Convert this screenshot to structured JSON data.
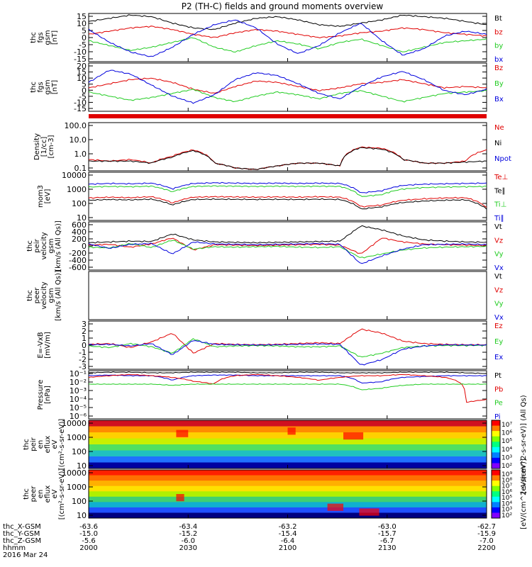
{
  "title": "P2 (TH-C) fields and ground moments overview",
  "colors": {
    "black": "#000000",
    "red": "#e00000",
    "green": "#22cc22",
    "blue": "#0000dd"
  },
  "chart_data": [
    {
      "type": "line",
      "id": "fgs_gsm",
      "ylabel": [
        "thc",
        "fgs",
        "gsm",
        "[nT]"
      ],
      "ylim": [
        -15,
        15
      ],
      "yticks": [
        "15",
        "10",
        "5",
        "0",
        "-5",
        "-10",
        "-15"
      ],
      "legend": [
        "Bt",
        "bz",
        "by",
        "bx"
      ],
      "legend_colors": [
        "black",
        "red",
        "green",
        "blue"
      ],
      "series": [
        {
          "name": "Bt",
          "color": "black",
          "values": [
            10,
            12,
            14,
            13,
            9,
            6,
            5,
            9,
            12,
            13,
            11,
            8,
            7,
            9,
            11,
            14,
            13,
            12,
            10,
            8
          ]
        },
        {
          "name": "bz",
          "color": "red",
          "values": [
            2,
            4,
            6,
            7,
            5,
            2,
            0,
            3,
            5,
            4,
            2,
            0,
            1,
            3,
            4,
            6,
            5,
            3,
            2,
            1
          ]
        },
        {
          "name": "by",
          "color": "green",
          "values": [
            -2,
            -5,
            -8,
            -6,
            -3,
            0,
            -6,
            -9,
            -5,
            -2,
            -4,
            -7,
            -3,
            -1,
            -5,
            -9,
            -6,
            -3,
            -2,
            -1
          ]
        },
        {
          "name": "bx",
          "color": "blue",
          "values": [
            5,
            -3,
            -9,
            -12,
            -6,
            2,
            8,
            11,
            6,
            -4,
            -10,
            -5,
            3,
            9,
            -2,
            -11,
            -7,
            1,
            4,
            2
          ]
        }
      ]
    },
    {
      "type": "line",
      "id": "fgs_gsm2",
      "ylabel": [
        "thc",
        "fgs",
        "gsm",
        "[nT]"
      ],
      "ylim": [
        -15,
        20
      ],
      "yticks": [
        "20",
        "15",
        "10",
        "5",
        "0",
        "-5",
        "-10",
        "-15"
      ],
      "legend": [
        "Bz",
        "By",
        "Bx"
      ],
      "legend_colors": [
        "red",
        "green",
        "blue"
      ],
      "series": [
        {
          "name": "Bz",
          "color": "red",
          "values": [
            2,
            5,
            8,
            9,
            6,
            1,
            -2,
            3,
            7,
            6,
            3,
            0,
            2,
            5,
            6,
            8,
            5,
            2,
            3,
            2
          ]
        },
        {
          "name": "By",
          "color": "green",
          "values": [
            -1,
            -4,
            -7,
            -5,
            -2,
            1,
            -5,
            -8,
            -4,
            -1,
            -3,
            -6,
            -2,
            0,
            -4,
            -8,
            -5,
            -2,
            -1,
            0
          ]
        },
        {
          "name": "Bx",
          "color": "blue",
          "values": [
            6,
            15,
            12,
            4,
            -4,
            -9,
            -3,
            8,
            13,
            11,
            5,
            -2,
            -6,
            3,
            10,
            14,
            8,
            0,
            -3,
            1
          ]
        }
      ]
    },
    {
      "type": "line",
      "id": "density",
      "ylabel": [
        "Density",
        "[1/cc]",
        "[cm-3]"
      ],
      "log": true,
      "ylim": [
        0.1,
        100
      ],
      "yticks": [
        "100.0",
        "10.0",
        "1.0",
        "0.1"
      ],
      "legend": [
        "Ne",
        "Ni",
        "Npot"
      ],
      "legend_colors": [
        "red",
        "black",
        "blue"
      ],
      "series": [
        {
          "name": "Ne",
          "color": "red",
          "values": [
            0.5,
            0.4,
            0.5,
            0.3,
            0.8,
            2.0,
            0.3,
            0.15,
            0.12,
            0.2,
            0.3,
            0.3,
            0.2,
            3.0,
            2.5,
            0.5,
            0.3,
            0.3,
            0.4,
            2.0
          ]
        },
        {
          "name": "Ni",
          "color": "black",
          "values": [
            0.4,
            0.4,
            0.4,
            0.3,
            0.7,
            1.8,
            0.3,
            0.15,
            0.12,
            0.2,
            0.3,
            0.3,
            0.2,
            2.8,
            2.2,
            0.5,
            0.3,
            0.3,
            0.35,
            0.4
          ]
        }
      ]
    },
    {
      "type": "line",
      "id": "temperature",
      "ylabel": [
        "mom3",
        "[eV]"
      ],
      "log": true,
      "ylim": [
        10,
        10000
      ],
      "yticks": [
        "10000",
        "1000",
        "100",
        "10"
      ],
      "legend": [
        "Te⊥",
        "Te∥",
        "Ti⊥",
        "Ti∥"
      ],
      "legend_colors": [
        "red",
        "black",
        "green",
        "blue"
      ],
      "series": [
        {
          "name": "Ti∥",
          "color": "blue",
          "values": [
            1800,
            2000,
            1900,
            2100,
            900,
            2000,
            2200,
            2100,
            2000,
            2100,
            2000,
            2100,
            2000,
            500,
            700,
            1500,
            1800,
            1900,
            2000,
            2100
          ]
        },
        {
          "name": "Ti⊥",
          "color": "green",
          "values": [
            1200,
            1300,
            1250,
            1350,
            600,
            1300,
            1400,
            1350,
            1300,
            1350,
            1300,
            1350,
            1300,
            300,
            400,
            900,
            1100,
            1200,
            1250,
            1300
          ]
        },
        {
          "name": "Te⊥",
          "color": "red",
          "values": [
            250,
            280,
            260,
            300,
            120,
            280,
            300,
            290,
            280,
            290,
            280,
            300,
            280,
            70,
            90,
            180,
            220,
            250,
            260,
            60
          ]
        },
        {
          "name": "Te∥",
          "color": "black",
          "values": [
            180,
            200,
            190,
            210,
            90,
            200,
            210,
            205,
            200,
            205,
            200,
            210,
            200,
            50,
            70,
            130,
            160,
            180,
            190,
            50
          ]
        }
      ]
    },
    {
      "type": "line",
      "id": "velocity",
      "ylabel": [
        "thc",
        "peir",
        "velocity",
        "gsm",
        "[km/s (All Qs)]"
      ],
      "ylim": [
        -600,
        600
      ],
      "yticks": [
        "600",
        "400",
        "200",
        "0",
        "-200",
        "-400",
        "-600"
      ],
      "legend": [
        "Vt",
        "Vz",
        "Vy",
        "Vx"
      ],
      "legend_colors": [
        "black",
        "red",
        "green",
        "blue"
      ],
      "series": [
        {
          "name": "Vt",
          "color": "black",
          "values": [
            80,
            100,
            120,
            110,
            300,
            150,
            100,
            90,
            80,
            90,
            100,
            110,
            120,
            500,
            400,
            250,
            150,
            120,
            100,
            90
          ]
        },
        {
          "name": "Vz",
          "color": "red",
          "values": [
            20,
            40,
            -30,
            50,
            200,
            -100,
            30,
            20,
            10,
            20,
            30,
            40,
            20,
            -200,
            200,
            100,
            50,
            30,
            20,
            10
          ]
        },
        {
          "name": "Vy",
          "color": "green",
          "values": [
            -30,
            -50,
            60,
            -40,
            150,
            -80,
            -20,
            -30,
            -20,
            -10,
            -30,
            -40,
            -20,
            -300,
            -200,
            -100,
            -50,
            -30,
            -20,
            -10
          ]
        },
        {
          "name": "Vx",
          "color": "blue",
          "values": [
            50,
            -60,
            40,
            60,
            -200,
            100,
            50,
            40,
            30,
            40,
            50,
            60,
            40,
            -450,
            -250,
            -80,
            30,
            40,
            50,
            30
          ]
        }
      ]
    },
    {
      "type": "line",
      "id": "velocity_e",
      "ylabel": [
        "thc",
        "peer",
        "velocity",
        "gsm",
        "[km/s (All Qs)]"
      ],
      "ylim": [
        -1,
        1
      ],
      "yticks": [],
      "legend": [
        "Vt",
        "Vz",
        "Vy",
        "Vx"
      ],
      "legend_colors": [
        "black",
        "red",
        "green",
        "blue"
      ],
      "series": []
    },
    {
      "type": "line",
      "id": "efield",
      "ylabel": [
        "E=-VxB",
        "[mV/m]"
      ],
      "ylim": [
        -3,
        3
      ],
      "yticks": [
        "3",
        "2",
        "1",
        "0",
        "-1",
        "-2",
        "-3"
      ],
      "legend": [
        "Ez",
        "Ey",
        "Ex"
      ],
      "legend_colors": [
        "red",
        "green",
        "blue"
      ],
      "series": [
        {
          "name": "Ez",
          "color": "red",
          "values": [
            0.1,
            0.2,
            -0.3,
            0.4,
            1.5,
            -1.0,
            0.2,
            0.1,
            0.05,
            0.1,
            0.2,
            0.3,
            0.2,
            2.0,
            1.5,
            0.5,
            0.2,
            0.1,
            0.05,
            0.05
          ]
        },
        {
          "name": "Ey",
          "color": "green",
          "values": [
            -0.1,
            -0.3,
            0.2,
            -0.2,
            -1.0,
            0.8,
            -0.2,
            -0.1,
            -0.05,
            -0.1,
            -0.2,
            -0.2,
            -0.1,
            -1.5,
            -1.0,
            -0.3,
            -0.1,
            -0.05,
            -0.05,
            -0.02
          ]
        },
        {
          "name": "Ex",
          "color": "blue",
          "values": [
            0.05,
            0.1,
            -0.1,
            0.2,
            -1.2,
            0.6,
            0.1,
            0.05,
            0.02,
            0.05,
            0.1,
            0.15,
            0.1,
            -2.5,
            -1.8,
            -0.5,
            -0.1,
            0.05,
            0.02,
            0.01
          ]
        }
      ]
    },
    {
      "type": "line",
      "id": "pressure",
      "ylabel": [
        "Pressure",
        "[nPa]"
      ],
      "log": true,
      "ylim": [
        1e-06,
        0.1
      ],
      "yticks": [
        "10⁻¹",
        "10⁻²",
        "10⁻³",
        "10⁻⁴",
        "10⁻⁵",
        "10⁻⁶"
      ],
      "legend": [
        "Pt",
        "Pb",
        "Pe",
        "Pi"
      ],
      "legend_colors": [
        "black",
        "red",
        "green",
        "blue"
      ],
      "series": [
        {
          "name": "Pt",
          "color": "black",
          "values": [
            0.06,
            0.07,
            0.07,
            0.06,
            0.06,
            0.07,
            0.07,
            0.07,
            0.06,
            0.06,
            0.07,
            0.07,
            0.06,
            0.06,
            0.06,
            0.07,
            0.07,
            0.07,
            0.06,
            0.05
          ]
        },
        {
          "name": "Pi",
          "color": "blue",
          "values": [
            0.03,
            0.035,
            0.03,
            0.03,
            0.01,
            0.03,
            0.035,
            0.035,
            0.03,
            0.03,
            0.03,
            0.03,
            0.03,
            0.005,
            0.007,
            0.02,
            0.025,
            0.03,
            0.03,
            0.03
          ]
        },
        {
          "name": "Pb",
          "color": "red",
          "values": [
            0.02,
            0.03,
            0.04,
            0.03,
            0.02,
            0.008,
            0.004,
            0.03,
            0.04,
            0.03,
            0.02,
            0.01,
            0.02,
            0.03,
            0.03,
            0.04,
            0.03,
            0.02,
            5e-05,
            0.0001
          ]
        },
        {
          "name": "Pe",
          "color": "green",
          "values": [
            0.004,
            0.004,
            0.004,
            0.004,
            0.003,
            0.004,
            0.004,
            0.004,
            0.004,
            0.004,
            0.004,
            0.004,
            0.004,
            0.001,
            0.0015,
            0.003,
            0.004,
            0.004,
            0.004,
            0.004
          ]
        }
      ]
    },
    {
      "type": "heatmap",
      "id": "ion_spec",
      "ylabel": [
        "thc",
        "peir",
        "en",
        "eflux",
        "eV",
        "[(cm²-s-sr-eV)]"
      ],
      "log": true,
      "ylim": [
        5,
        20000
      ],
      "yticks": [
        "10000",
        "1000",
        "100",
        "10"
      ],
      "colorbar": {
        "label": "[eV/(cm^2-s-sr-eV)] (All Qs)",
        "ticks": [
          "10⁷",
          "10⁶",
          "10⁵",
          "10⁴",
          "10³",
          "10²"
        ]
      }
    },
    {
      "type": "heatmap",
      "id": "elec_spec",
      "ylabel": [
        "thc",
        "peer",
        "en",
        "eflux",
        "eV",
        "[(cm²-s-sr-eV)]"
      ],
      "log": true,
      "ylim": [
        5,
        20000
      ],
      "yticks": [
        "10000",
        "1000",
        "100",
        "10"
      ],
      "colorbar": {
        "label": "[eV/(cm^2-s-sr-eV)]",
        "ticks": [
          "10⁹",
          "10⁸",
          "10⁷",
          "10⁶",
          "10⁵",
          "10⁴",
          "10³",
          "10²"
        ]
      }
    }
  ],
  "xaxis": {
    "row_labels": [
      "thc_X-GSM",
      "thc_Y-GSM",
      "thc_Z-GSM",
      "hhmm",
      "2016 Mar 24"
    ],
    "ticks": [
      {
        "values": [
          "-63.6",
          "-15.0",
          "-5.6",
          "2000"
        ]
      },
      {
        "values": [
          "-63.4",
          "-15.2",
          "-6.0",
          "2030"
        ]
      },
      {
        "values": [
          "-63.2",
          "-15.4",
          "-6.4",
          "2100"
        ]
      },
      {
        "values": [
          "-63.0",
          "-15.7",
          "-6.7",
          "2130"
        ]
      },
      {
        "values": [
          "-62.7",
          "-15.9",
          "-7.0",
          "2200"
        ]
      }
    ]
  }
}
